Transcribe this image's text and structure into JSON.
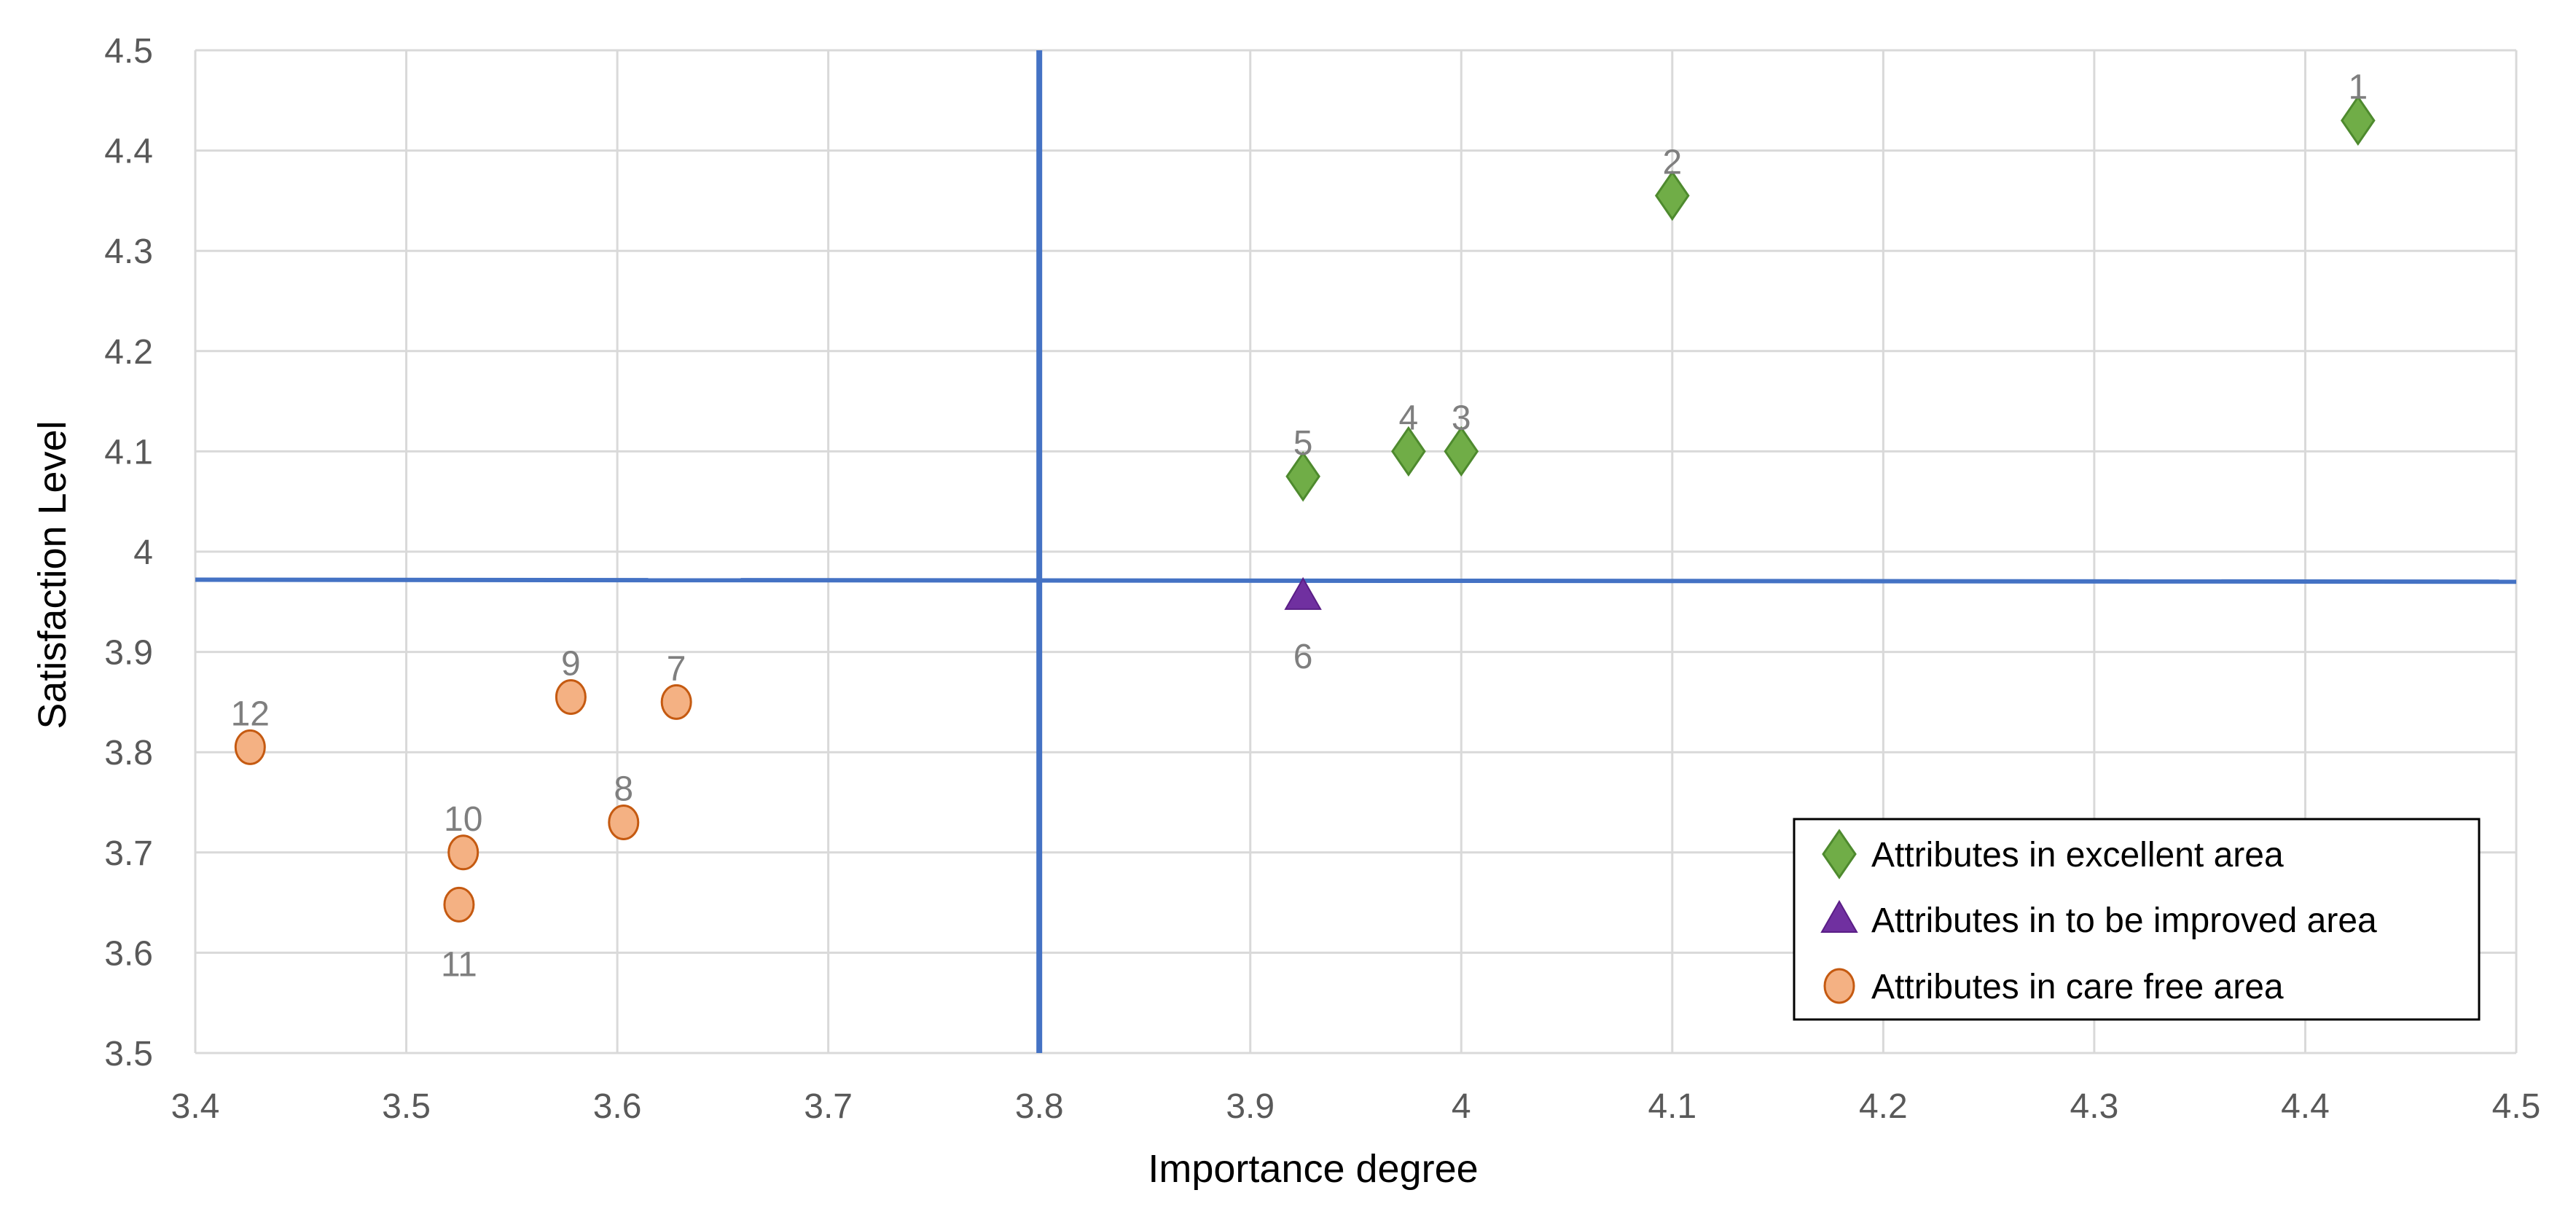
{
  "chart_data": {
    "type": "scatter",
    "title": "",
    "xlabel": "Importance degree",
    "ylabel": "Satisfaction Level",
    "xlim": [
      3.4,
      4.5
    ],
    "ylim": [
      3.5,
      4.5
    ],
    "x_ticks": [
      "3.4",
      "3.5",
      "3.6",
      "3.7",
      "3.8",
      "3.9",
      "4",
      "4.1",
      "4.2",
      "4.3",
      "4.4",
      "4.5"
    ],
    "y_ticks": [
      "3.5",
      "3.6",
      "3.7",
      "3.8",
      "3.9",
      "4",
      "4.1",
      "4.2",
      "4.3",
      "4.4",
      "4.5"
    ],
    "grid": true,
    "legend_position": "bottom-right",
    "divider_lines": {
      "vertical_x": 3.8,
      "horizontal_y": [
        3.972,
        3.97
      ],
      "color": "#4472C4"
    },
    "series": [
      {
        "name": "Attributes in excellent area",
        "marker": "diamond",
        "fill": "#70AD47",
        "stroke": "#4E8A2E",
        "points": [
          {
            "label": "1",
            "x": 4.425,
            "y": 4.43,
            "label_pos": "above"
          },
          {
            "label": "2",
            "x": 4.1,
            "y": 4.355,
            "label_pos": "above"
          },
          {
            "label": "3",
            "x": 4.0,
            "y": 4.1,
            "label_pos": "above"
          },
          {
            "label": "4",
            "x": 3.975,
            "y": 4.1,
            "label_pos": "above"
          },
          {
            "label": "5",
            "x": 3.925,
            "y": 4.075,
            "label_pos": "above"
          }
        ]
      },
      {
        "name": "Attributes in to be improved area",
        "marker": "triangle",
        "fill": "#7030A0",
        "stroke": "#5A1E86",
        "points": [
          {
            "label": "6",
            "x": 3.925,
            "y": 3.955,
            "label_pos": "below"
          }
        ]
      },
      {
        "name": "Attributes in care free area",
        "marker": "circle",
        "fill": "#F4B183",
        "stroke": "#C55A11",
        "points": [
          {
            "label": "7",
            "x": 3.628,
            "y": 3.85,
            "label_pos": "above"
          },
          {
            "label": "8",
            "x": 3.603,
            "y": 3.73,
            "label_pos": "above"
          },
          {
            "label": "9",
            "x": 3.578,
            "y": 3.855,
            "label_pos": "above"
          },
          {
            "label": "10",
            "x": 3.527,
            "y": 3.7,
            "label_pos": "above"
          },
          {
            "label": "11",
            "x": 3.525,
            "y": 3.648,
            "label_pos": "below"
          },
          {
            "label": "12",
            "x": 3.426,
            "y": 3.805,
            "label_pos": "above"
          }
        ]
      }
    ]
  }
}
